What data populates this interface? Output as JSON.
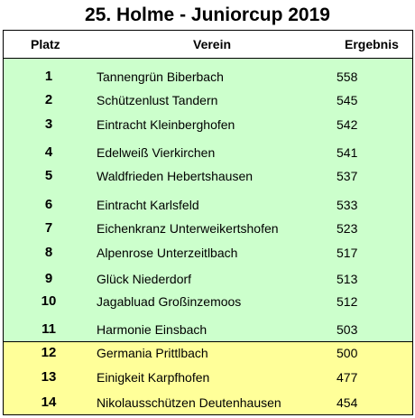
{
  "title": "25. Holme - Juniorcup 2019",
  "headers": {
    "platz": "Platz",
    "verein": "Verein",
    "ergebnis": "Ergebnis"
  },
  "colors": {
    "top_group": "#ccffcc",
    "bottom_group": "#ffff99"
  },
  "rows": [
    {
      "platz": "1",
      "verein": "Tannengrün Biberbach",
      "ergebnis": "558"
    },
    {
      "platz": "2",
      "verein": "Schützenlust Tandern",
      "ergebnis": "545"
    },
    {
      "platz": "3",
      "verein": "Eintracht Kleinberghofen",
      "ergebnis": "542"
    },
    {
      "platz": "4",
      "verein": "Edelweiß Vierkirchen",
      "ergebnis": "541"
    },
    {
      "platz": "5",
      "verein": "Waldfrieden Hebertshausen",
      "ergebnis": "537"
    },
    {
      "platz": "6",
      "verein": "Eintracht Karlsfeld",
      "ergebnis": "533"
    },
    {
      "platz": "7",
      "verein": "Eichenkranz Unterweikertshofen",
      "ergebnis": "523"
    },
    {
      "platz": "8",
      "verein": "Alpenrose Unterzeitlbach",
      "ergebnis": "517"
    },
    {
      "platz": "9",
      "verein": "Glück Niederdorf",
      "ergebnis": "513"
    },
    {
      "platz": "10",
      "verein": "Jagabluad Großinzemoos",
      "ergebnis": "512"
    },
    {
      "platz": "11",
      "verein": "Harmonie Einsbach",
      "ergebnis": "503"
    },
    {
      "platz": "12",
      "verein": "Germania Prittlbach",
      "ergebnis": "500"
    },
    {
      "platz": "13",
      "verein": "Einigkeit Karpfhofen",
      "ergebnis": "477"
    },
    {
      "platz": "14",
      "verein": "Nikolausschützen Deutenhausen",
      "ergebnis": "454"
    }
  ]
}
